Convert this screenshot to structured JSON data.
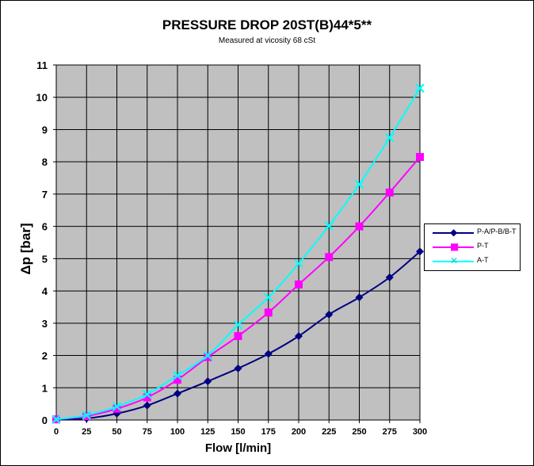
{
  "chart_data": {
    "type": "line",
    "title": "PRESSURE DROP 20ST(B)44*5**",
    "subtitle": "Measured at vicosity 68 cSt",
    "xlabel": "Flow [l/min]",
    "ylabel": "Δp [bar]",
    "x": [
      0,
      25,
      50,
      75,
      100,
      125,
      150,
      175,
      200,
      225,
      250,
      275,
      300
    ],
    "xlim": [
      0,
      300
    ],
    "ylim": [
      0,
      11
    ],
    "xticks": [
      0,
      25,
      50,
      75,
      100,
      125,
      150,
      175,
      200,
      225,
      250,
      275,
      300
    ],
    "yticks": [
      0,
      1,
      2,
      3,
      4,
      5,
      6,
      7,
      8,
      9,
      10,
      11
    ],
    "grid": true,
    "plot_background": "#c0c0c0",
    "legend_position": "right",
    "series": [
      {
        "name": "P-A/P-B/B-T",
        "color": "#000080",
        "marker": "diamond",
        "values": [
          0.02,
          0.05,
          0.2,
          0.45,
          0.82,
          1.2,
          1.6,
          2.05,
          2.6,
          3.27,
          3.8,
          4.42,
          5.22
        ]
      },
      {
        "name": "P-T",
        "color": "#ff00ff",
        "marker": "square",
        "values": [
          0.02,
          0.12,
          0.35,
          0.7,
          1.25,
          1.95,
          2.6,
          3.33,
          4.2,
          5.05,
          6.0,
          7.05,
          8.15
        ]
      },
      {
        "name": "A-T",
        "color": "#00ffff",
        "marker": "x",
        "values": [
          0.02,
          0.15,
          0.42,
          0.8,
          1.38,
          2.0,
          2.95,
          3.8,
          4.85,
          6.02,
          7.3,
          8.75,
          10.28
        ]
      }
    ]
  }
}
